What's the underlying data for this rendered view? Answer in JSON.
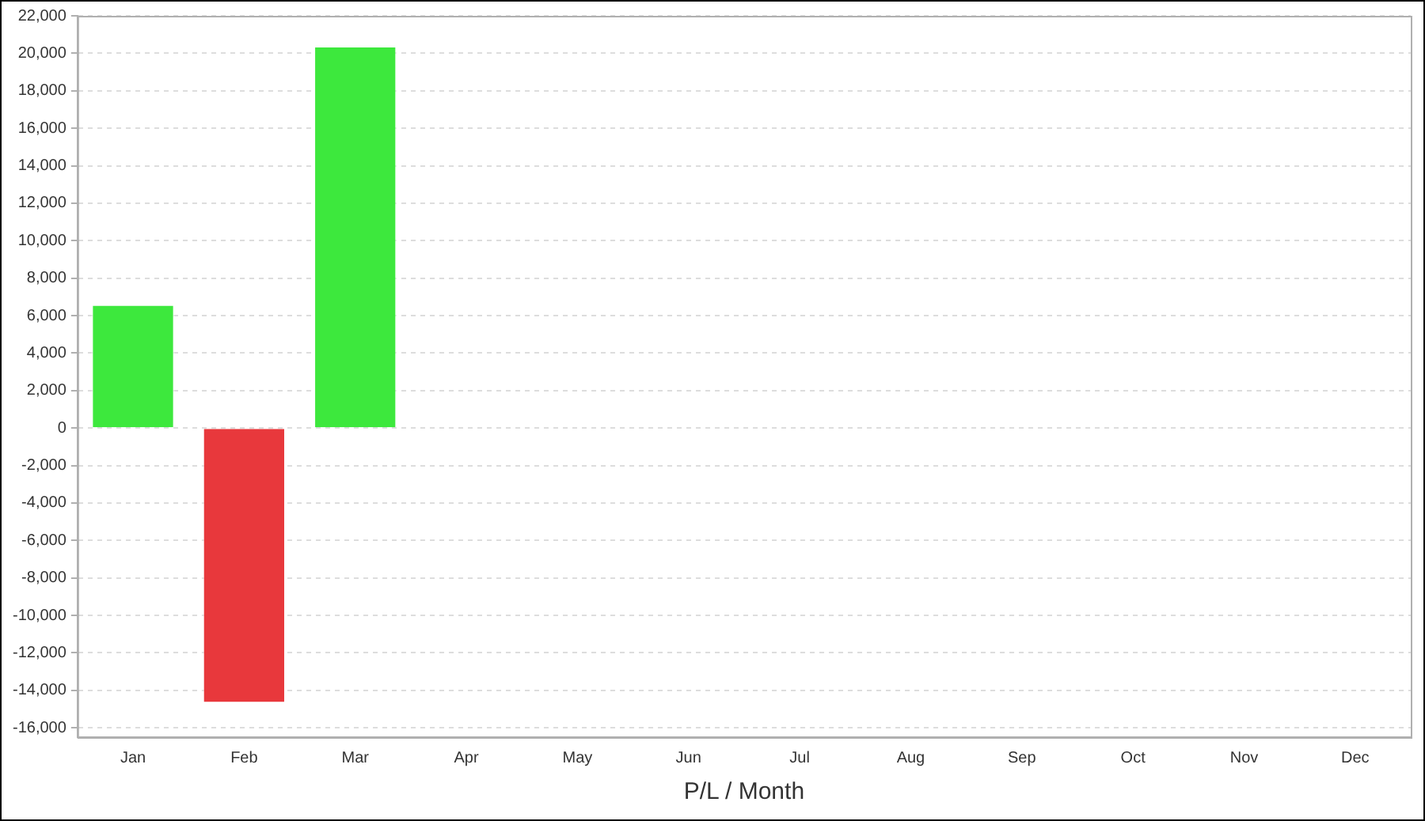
{
  "chart_data": {
    "type": "bar",
    "xlabel": "P/L / Month",
    "categories": [
      "Jan",
      "Feb",
      "Mar",
      "Apr",
      "May",
      "Jun",
      "Jul",
      "Aug",
      "Sep",
      "Oct",
      "Nov",
      "Dec"
    ],
    "values": [
      6600,
      -14700,
      20400,
      null,
      null,
      null,
      null,
      null,
      null,
      null,
      null,
      null
    ],
    "colors": [
      "#3de83d",
      "#e8383c",
      "#3de83d",
      "#3de83d",
      "#3de83d",
      "#3de83d",
      "#3de83d",
      "#3de83d",
      "#3de83d",
      "#3de83d",
      "#3de83d",
      "#3de83d"
    ],
    "ylim": [
      -16500,
      22000
    ],
    "yticks": [
      {
        "value": -16000,
        "label": "-16,000"
      },
      {
        "value": -14000,
        "label": "-14,000"
      },
      {
        "value": -12000,
        "label": "-12,000"
      },
      {
        "value": -10000,
        "label": "-10,000"
      },
      {
        "value": -8000,
        "label": "-8,000"
      },
      {
        "value": -6000,
        "label": "-6,000"
      },
      {
        "value": -4000,
        "label": "-4,000"
      },
      {
        "value": -2000,
        "label": "-2,000"
      },
      0,
      {
        "value": 2000,
        "label": "2,000"
      },
      {
        "value": 4000,
        "label": "4,000"
      },
      {
        "value": 6000,
        "label": "6,000"
      },
      {
        "value": 8000,
        "label": "8,000"
      },
      {
        "value": 10000,
        "label": "10,000"
      },
      {
        "value": 12000,
        "label": "12,000"
      },
      {
        "value": 14000,
        "label": "14,000"
      },
      {
        "value": 16000,
        "label": "16,000"
      },
      {
        "value": 18000,
        "label": "18,000"
      },
      {
        "value": 20000,
        "label": "20,000"
      },
      {
        "value": 22000,
        "label": "22,000"
      }
    ],
    "grid": "y",
    "legend": false
  }
}
